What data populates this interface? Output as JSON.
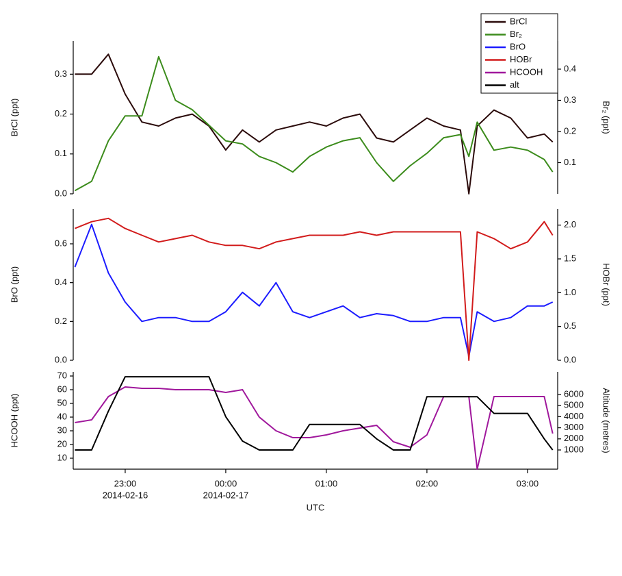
{
  "chart_data": [
    {
      "type": "line",
      "legend": "upper right",
      "x": [
        "2014-02-16T22:30",
        "2014-02-16T22:40",
        "2014-02-16T22:50",
        "2014-02-16T23:00",
        "2014-02-16T23:10",
        "2014-02-16T23:20",
        "2014-02-16T23:30",
        "2014-02-16T23:40",
        "2014-02-16T23:50",
        "2014-02-17T00:00",
        "2014-02-17T00:10",
        "2014-02-17T00:20",
        "2014-02-17T00:30",
        "2014-02-17T00:40",
        "2014-02-17T00:50",
        "2014-02-17T01:00",
        "2014-02-17T01:10",
        "2014-02-17T01:20",
        "2014-02-17T01:30",
        "2014-02-17T01:40",
        "2014-02-17T01:50",
        "2014-02-17T02:00",
        "2014-02-17T02:10",
        "2014-02-17T02:20",
        "2014-02-17T02:25",
        "2014-02-17T02:30",
        "2014-02-17T02:40",
        "2014-02-17T02:50",
        "2014-02-17T03:00",
        "2014-02-17T03:10",
        "2014-02-17T03:15"
      ],
      "xlim": [
        "2014-02-16T22:29",
        "2014-02-17T03:18"
      ],
      "ylabel": "BrCl (ppt)",
      "ylim": [
        0,
        0.383
      ],
      "yticks": [
        {
          "value": 0,
          "label": "0.0"
        },
        0.1,
        0.2,
        0.3
      ],
      "y2label": "Br₂ (ppt)",
      "y2lim": [
        0,
        0.49
      ],
      "y2ticks": [
        0.1,
        0.2,
        0.3,
        0.4
      ],
      "series": [
        {
          "name": "BrCl",
          "color": "#2b0b0b",
          "values": [
            0.3,
            0.3,
            0.35,
            0.25,
            0.18,
            0.17,
            0.19,
            0.2,
            0.17,
            0.11,
            0.16,
            0.13,
            0.16,
            0.17,
            0.18,
            0.17,
            0.19,
            0.2,
            0.14,
            0.13,
            0.16,
            0.19,
            0.17,
            0.16,
            0.0,
            0.17,
            0.21,
            0.19,
            0.14,
            0.15,
            0.13
          ]
        },
        {
          "name": "Br₂",
          "color": "#3c8c1c",
          "axis": "y2",
          "values": [
            0.01,
            0.04,
            0.17,
            0.25,
            0.25,
            0.44,
            0.3,
            0.27,
            0.22,
            0.17,
            0.16,
            0.12,
            0.1,
            0.07,
            0.12,
            0.15,
            0.17,
            0.18,
            0.1,
            0.04,
            0.09,
            0.13,
            0.18,
            0.19,
            0.12,
            0.23,
            0.14,
            0.15,
            0.14,
            0.11,
            0.07
          ]
        }
      ]
    },
    {
      "type": "line",
      "x": [
        "2014-02-16T22:30",
        "2014-02-16T22:40",
        "2014-02-16T22:50",
        "2014-02-16T23:00",
        "2014-02-16T23:10",
        "2014-02-16T23:20",
        "2014-02-16T23:30",
        "2014-02-16T23:40",
        "2014-02-16T23:50",
        "2014-02-17T00:00",
        "2014-02-17T00:10",
        "2014-02-17T00:20",
        "2014-02-17T00:30",
        "2014-02-17T00:40",
        "2014-02-17T00:50",
        "2014-02-17T01:00",
        "2014-02-17T01:10",
        "2014-02-17T01:20",
        "2014-02-17T01:30",
        "2014-02-17T01:40",
        "2014-02-17T01:50",
        "2014-02-17T02:00",
        "2014-02-17T02:10",
        "2014-02-17T02:20",
        "2014-02-17T02:25",
        "2014-02-17T02:30",
        "2014-02-17T02:40",
        "2014-02-17T02:50",
        "2014-02-17T03:00",
        "2014-02-17T03:10",
        "2014-02-17T03:15"
      ],
      "xlim": [
        "2014-02-16T22:29",
        "2014-02-17T03:18"
      ],
      "ylabel": "BrO (ppt)",
      "ylim": [
        0,
        0.78
      ],
      "yticks": [
        {
          "value": 0,
          "label": "0.0"
        },
        0.2,
        0.4,
        0.6
      ],
      "y2label": "HOBr (ppt)",
      "y2lim": [
        0,
        2.24
      ],
      "y2ticks": [
        {
          "value": 0,
          "label": "0.0"
        },
        0.5,
        {
          "value": 1,
          "label": "1.0"
        },
        1.5,
        {
          "value": 2,
          "label": "2.0"
        }
      ],
      "series": [
        {
          "name": "BrO",
          "color": "#1c1cff",
          "values": [
            0.48,
            0.7,
            0.45,
            0.3,
            0.2,
            0.22,
            0.22,
            0.2,
            0.2,
            0.25,
            0.35,
            0.28,
            0.4,
            0.25,
            0.22,
            0.25,
            0.28,
            0.22,
            0.24,
            0.23,
            0.2,
            0.2,
            0.22,
            0.22,
            0.02,
            0.25,
            0.2,
            0.22,
            0.28,
            0.28,
            0.3
          ]
        },
        {
          "name": "HOBr",
          "color": "#d21c1c",
          "axis": "y2",
          "values": [
            1.95,
            2.05,
            2.1,
            1.95,
            1.85,
            1.75,
            1.8,
            1.85,
            1.75,
            1.7,
            1.7,
            1.65,
            1.75,
            1.8,
            1.85,
            1.85,
            1.85,
            1.9,
            1.85,
            1.9,
            1.9,
            1.9,
            1.9,
            1.9,
            0.0,
            1.9,
            1.8,
            1.65,
            1.75,
            2.05,
            1.85
          ]
        }
      ]
    },
    {
      "type": "line",
      "x": [
        "2014-02-16T22:30",
        "2014-02-16T22:40",
        "2014-02-16T22:50",
        "2014-02-16T23:00",
        "2014-02-16T23:10",
        "2014-02-16T23:20",
        "2014-02-16T23:30",
        "2014-02-16T23:40",
        "2014-02-16T23:50",
        "2014-02-17T00:00",
        "2014-02-17T00:10",
        "2014-02-17T00:20",
        "2014-02-17T00:30",
        "2014-02-17T00:40",
        "2014-02-17T00:50",
        "2014-02-17T01:00",
        "2014-02-17T01:10",
        "2014-02-17T01:20",
        "2014-02-17T01:30",
        "2014-02-17T01:40",
        "2014-02-17T01:50",
        "2014-02-17T02:00",
        "2014-02-17T02:10",
        "2014-02-17T02:20",
        "2014-02-17T02:25",
        "2014-02-17T02:30",
        "2014-02-17T02:40",
        "2014-02-17T02:50",
        "2014-02-17T03:00",
        "2014-02-17T03:10",
        "2014-02-17T03:15"
      ],
      "xlim": [
        "2014-02-16T22:29",
        "2014-02-17T03:18"
      ],
      "xlabel": "UTC",
      "xticks": [
        {
          "value": "2014-02-16T23:00",
          "label": "23:00",
          "date": "2014-02-16"
        },
        {
          "value": "2014-02-17T00:00",
          "label": "00:00",
          "date": "2014-02-17"
        },
        {
          "value": "2014-02-17T01:00",
          "label": "01:00"
        },
        {
          "value": "2014-02-17T02:00",
          "label": "02:00"
        },
        {
          "value": "2014-02-17T03:00",
          "label": "03:00"
        }
      ],
      "ylabel": "HCOOH (ppt)",
      "ylim": [
        2,
        73
      ],
      "yticks": [
        10,
        20,
        30,
        40,
        50,
        60,
        70
      ],
      "y2label": "Altitude (metres)",
      "y2lim": [
        -730,
        8040
      ],
      "y2ticks": [
        1000,
        2000,
        3000,
        4000,
        5000,
        6000
      ],
      "series": [
        {
          "name": "HCOOH",
          "color": "#a0189c",
          "values": [
            36,
            38,
            55,
            62,
            61,
            61,
            60,
            60,
            60,
            58,
            60,
            40,
            30,
            25,
            25,
            27,
            30,
            32,
            34,
            22,
            18,
            27,
            55,
            55,
            55,
            2,
            55,
            55,
            55,
            55,
            28
          ]
        },
        {
          "name": "alt",
          "color": "#000000",
          "axis": "y2",
          "values": [
            1000,
            1000,
            4500,
            7600,
            7600,
            7600,
            7600,
            7600,
            7600,
            4000,
            1800,
            1000,
            1000,
            1000,
            3300,
            3300,
            3300,
            3300,
            2000,
            1000,
            1000,
            5800,
            5800,
            5800,
            5800,
            5800,
            4300,
            4300,
            4300,
            2000,
            1000
          ]
        }
      ]
    }
  ]
}
